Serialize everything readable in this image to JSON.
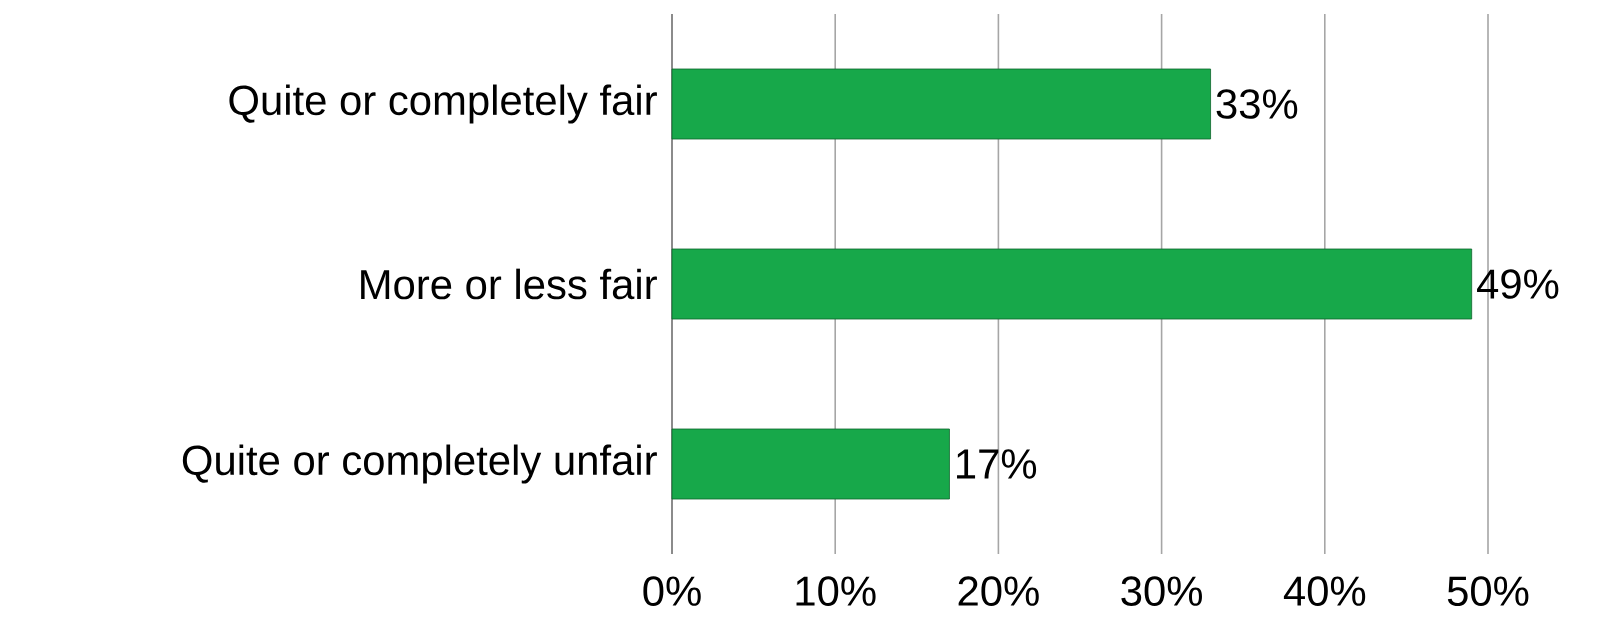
{
  "chart_data": {
    "type": "bar",
    "orientation": "horizontal",
    "categories": [
      "Quite or completely fair",
      "More or less fair",
      "Quite or completely unfair"
    ],
    "values": [
      33,
      49,
      17
    ],
    "value_labels": [
      "33%",
      "49%",
      "17%"
    ],
    "color": "#17a84a",
    "xlim": [
      0,
      50
    ],
    "xticks": [
      {
        "value": 0,
        "label": "0%"
      },
      {
        "value": 10,
        "label": "10%"
      },
      {
        "value": 20,
        "label": "20%"
      },
      {
        "value": 30,
        "label": "30%"
      },
      {
        "value": 40,
        "label": "40%"
      },
      {
        "value": 50,
        "label": "50%"
      }
    ],
    "grid": "x"
  }
}
